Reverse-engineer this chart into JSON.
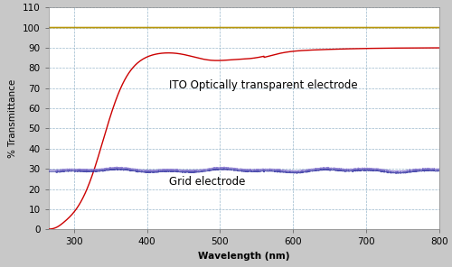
{
  "title": "",
  "xlabel": "Wavelength (nm)",
  "ylabel": "% Transmittance",
  "xlim": [
    265,
    800
  ],
  "ylim": [
    0,
    110
  ],
  "yticks": [
    0,
    10,
    20,
    30,
    40,
    50,
    60,
    70,
    80,
    90,
    100,
    110
  ],
  "xticks": [
    300,
    400,
    500,
    600,
    700,
    800
  ],
  "background_color": "#c8c8c8",
  "plot_background_color": "#ffffff",
  "grid_color": "#9ab8cc",
  "grid_linestyle": "--",
  "ito_color": "#cc0000",
  "grid_electrode_color_1": "#8070cc",
  "grid_electrode_color_2": "#3030a0",
  "reference_color": "#b8960a",
  "ito_label": "ITO Optically transparent electrode",
  "grid_label": "Grid electrode",
  "label_fontsize": 8.5,
  "axis_label_fontsize": 7.5,
  "tick_fontsize": 7.5
}
